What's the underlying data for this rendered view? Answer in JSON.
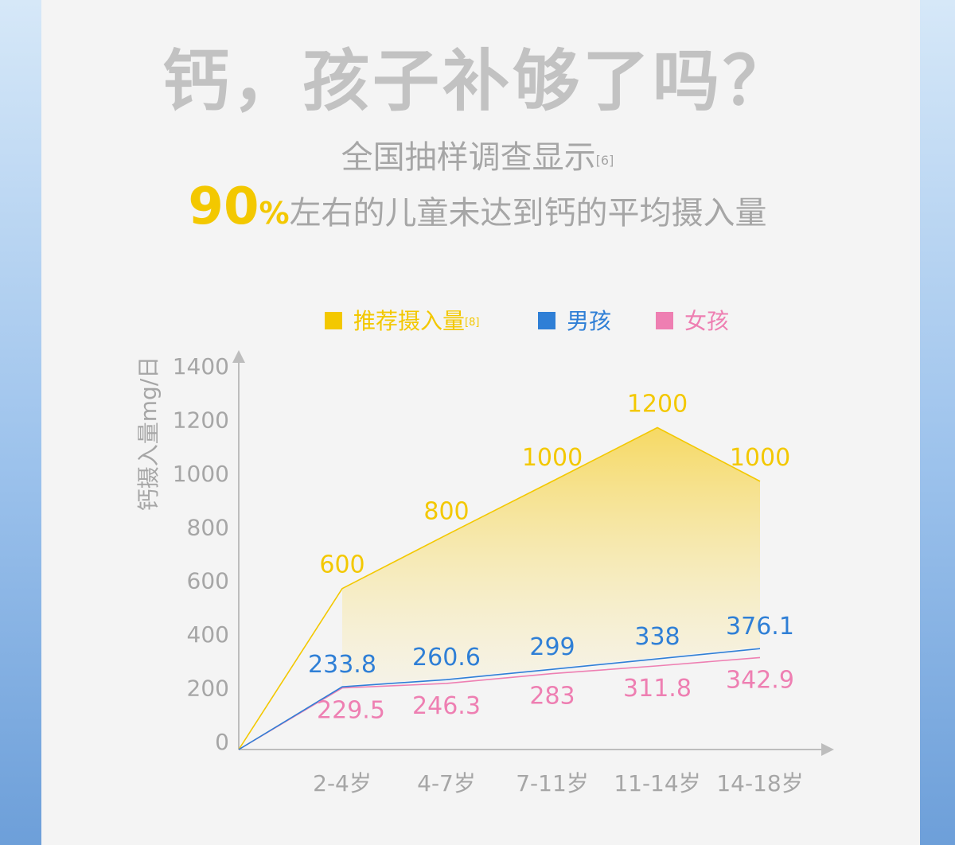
{
  "title": "钙，孩子补够了吗？",
  "subtitle": {
    "text": "全国抽样调查显示",
    "ref": "[6]"
  },
  "headline": {
    "percent": "90",
    "percent_symbol": "%",
    "text": "左右的儿童未达到钙的平均摄入量"
  },
  "colors": {
    "recommended": "#f3c800",
    "boys": "#2f7fd6",
    "girls": "#ee7fb2",
    "axis": "#bdbdbd",
    "tick_text": "#a6a6a6"
  },
  "chart_data": {
    "type": "area",
    "title": "",
    "xlabel": "",
    "ylabel": "钙摄入量mg/日",
    "ylim": [
      0,
      1400
    ],
    "yticks": [
      0,
      200,
      400,
      600,
      800,
      1000,
      1200,
      1400
    ],
    "categories": [
      "2-4岁",
      "4-7岁",
      "7-11岁",
      "11-14岁",
      "14-18岁"
    ],
    "legend_position": "top",
    "series": [
      {
        "name": "推荐摄入量",
        "ref": "[8]",
        "values": [
          600,
          800,
          1000,
          1200,
          1000
        ],
        "color": "#f3c800"
      },
      {
        "name": "男孩",
        "values": [
          233.8,
          260.6,
          299,
          338,
          376.1
        ],
        "color": "#2f7fd6"
      },
      {
        "name": "女孩",
        "values": [
          229.5,
          246.3,
          283,
          311.8,
          342.9
        ],
        "color": "#ee7fb2"
      }
    ]
  }
}
